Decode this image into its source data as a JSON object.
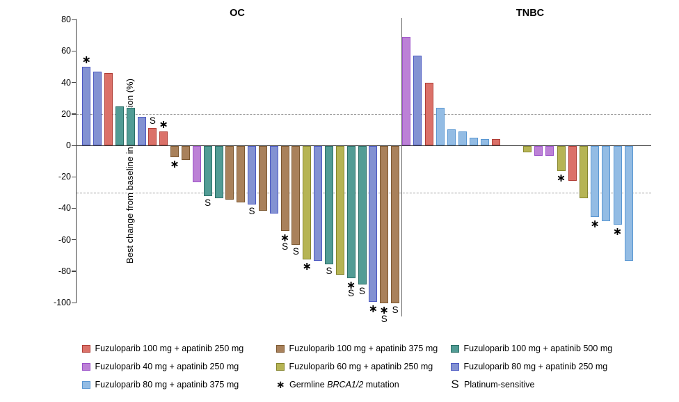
{
  "chart_data": {
    "type": "bar",
    "title": "",
    "ylabel": "Best change from baseline in target lesion (%)",
    "ylim": [
      -100,
      80
    ],
    "y_ticks": [
      80,
      60,
      40,
      20,
      0,
      -20,
      -40,
      -60,
      -80,
      -100
    ],
    "reference_lines": [
      20,
      -30
    ],
    "grid": "off",
    "legend_position": "bottom",
    "colors": {
      "fz100ap250": {
        "fill": "#DB7169",
        "border": "#B03E36"
      },
      "fz100ap375": {
        "fill": "#A9815B",
        "border": "#7C5831"
      },
      "fz100ap500": {
        "fill": "#529C95",
        "border": "#2B6F67"
      },
      "fz40ap250": {
        "fill": "#BC81D6",
        "border": "#9C52C9"
      },
      "fz60ap250": {
        "fill": "#B6B454",
        "border": "#86862E"
      },
      "fz80ap250": {
        "fill": "#8392D2",
        "border": "#4C59C2"
      },
      "fz80ap375": {
        "fill": "#93BCE4",
        "border": "#5A97D2"
      }
    },
    "panels": [
      {
        "name": "OC",
        "bars": [
          {
            "v": 50,
            "g": "fz80ap250",
            "mark": "*"
          },
          {
            "v": 47,
            "g": "fz80ap250",
            "mark": ""
          },
          {
            "v": 46,
            "g": "fz100ap250",
            "mark": ""
          },
          {
            "v": 25,
            "g": "fz100ap500",
            "mark": ""
          },
          {
            "v": 24,
            "g": "fz100ap500",
            "mark": ""
          },
          {
            "v": 18,
            "g": "fz80ap250",
            "mark": ""
          },
          {
            "v": 11,
            "g": "fz100ap250",
            "mark": "S"
          },
          {
            "v": 9,
            "g": "fz100ap250",
            "mark": "*"
          },
          {
            "v": -7,
            "g": "fz100ap375",
            "mark": "*"
          },
          {
            "v": -9,
            "g": "fz100ap375",
            "mark": ""
          },
          {
            "v": -23,
            "g": "fz40ap250",
            "mark": ""
          },
          {
            "v": -32,
            "g": "fz100ap500",
            "mark": "S"
          },
          {
            "v": -33,
            "g": "fz100ap500",
            "mark": ""
          },
          {
            "v": -34,
            "g": "fz100ap375",
            "mark": ""
          },
          {
            "v": -36,
            "g": "fz100ap375",
            "mark": ""
          },
          {
            "v": -37,
            "g": "fz80ap250",
            "mark": "S"
          },
          {
            "v": -41,
            "g": "fz100ap375",
            "mark": ""
          },
          {
            "v": -43,
            "g": "fz80ap250",
            "mark": ""
          },
          {
            "v": -54,
            "g": "fz100ap375",
            "mark": "*S"
          },
          {
            "v": -63,
            "g": "fz100ap375",
            "mark": "S"
          },
          {
            "v": -72,
            "g": "fz60ap250",
            "mark": "*"
          },
          {
            "v": -73,
            "g": "fz80ap250",
            "mark": ""
          },
          {
            "v": -75,
            "g": "fz100ap500",
            "mark": "S"
          },
          {
            "v": -82,
            "g": "fz60ap250",
            "mark": ""
          },
          {
            "v": -84,
            "g": "fz100ap500",
            "mark": "*S"
          },
          {
            "v": -88,
            "g": "fz100ap500",
            "mark": "S"
          },
          {
            "v": -99,
            "g": "fz80ap250",
            "mark": "*"
          },
          {
            "v": -100,
            "g": "fz100ap375",
            "mark": "*S"
          },
          {
            "v": -100,
            "g": "fz100ap375",
            "mark": "S"
          }
        ]
      },
      {
        "name": "TNBC",
        "bars": [
          {
            "v": 69,
            "g": "fz40ap250",
            "mark": ""
          },
          {
            "v": 57,
            "g": "fz80ap250",
            "mark": ""
          },
          {
            "v": 40,
            "g": "fz100ap250",
            "mark": ""
          },
          {
            "v": 24,
            "g": "fz80ap375",
            "mark": ""
          },
          {
            "v": 10,
            "g": "fz80ap375",
            "mark": ""
          },
          {
            "v": 9,
            "g": "fz80ap375",
            "mark": ""
          },
          {
            "v": 5,
            "g": "fz80ap375",
            "mark": ""
          },
          {
            "v": 4,
            "g": "fz80ap375",
            "mark": ""
          },
          {
            "v": 4,
            "g": "fz100ap250",
            "mark": ""
          },
          {
            "v": -4,
            "g": "fz60ap250",
            "mark": ""
          },
          {
            "v": -6,
            "g": "fz40ap250",
            "mark": ""
          },
          {
            "v": -6,
            "g": "fz40ap250",
            "mark": ""
          },
          {
            "v": -16,
            "g": "fz60ap250",
            "mark": "*"
          },
          {
            "v": -22,
            "g": "fz100ap250",
            "mark": ""
          },
          {
            "v": -33,
            "g": "fz60ap250",
            "mark": ""
          },
          {
            "v": -45,
            "g": "fz80ap375",
            "mark": "*"
          },
          {
            "v": -48,
            "g": "fz80ap375",
            "mark": ""
          },
          {
            "v": -50,
            "g": "fz80ap375",
            "mark": "*"
          },
          {
            "v": -73,
            "g": "fz80ap375",
            "mark": ""
          }
        ]
      }
    ],
    "legend": {
      "columns": [
        [
          {
            "swatch": "fz100ap250",
            "label": "Fuzuloparib 100 mg + apatinib 250 mg"
          },
          {
            "swatch": "fz40ap250",
            "label": "Fuzuloparib 40 mg + apatinib 250 mg"
          },
          {
            "swatch": "fz80ap375",
            "label": "Fuzuloparib 80 mg + apatinib 375 mg"
          }
        ],
        [
          {
            "swatch": "fz100ap375",
            "label": "Fuzuloparib 100 mg + apatinib 375 mg"
          },
          {
            "swatch": "fz60ap250",
            "label": "Fuzuloparib 60 mg + apatinib 250 mg"
          },
          {
            "symbol": "*",
            "prefix": "Germline ",
            "italic": "BRCA1/2",
            "suffix": " mutation"
          }
        ],
        [
          {
            "swatch": "fz100ap500",
            "label": "Fuzuloparib 100 mg + apatinib 500 mg"
          },
          {
            "swatch": "fz80ap250",
            "label": "Fuzuloparib 80 mg + apatinib 250 mg"
          },
          {
            "symbol": "S",
            "label": "Platinum-sensitive"
          }
        ]
      ]
    }
  }
}
